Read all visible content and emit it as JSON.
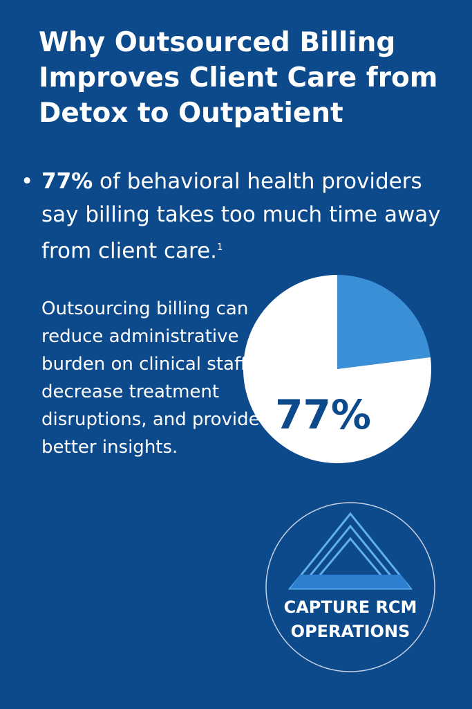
{
  "title": "Why Outsourced Billing Improves Client Care from Detox to Outpatient",
  "bullet": {
    "highlight": "77%",
    "text": " of behavioral health providers say billing takes too much time away from client care.",
    "footnote": "1"
  },
  "paragraph": "Outsourcing billing can reduce administrative burden on clinical staff, decrease treatment disruptions, and provide better insights.",
  "chart_data": {
    "type": "pie",
    "categories": [
      null,
      null
    ],
    "values": [
      23,
      77
    ],
    "value_labels": [
      null,
      "77%"
    ],
    "colors": [
      "#3a8fd6",
      "#ffffff"
    ]
  },
  "logo": {
    "line1": "CAPTURE RCM",
    "line2": "OPERATIONS"
  }
}
